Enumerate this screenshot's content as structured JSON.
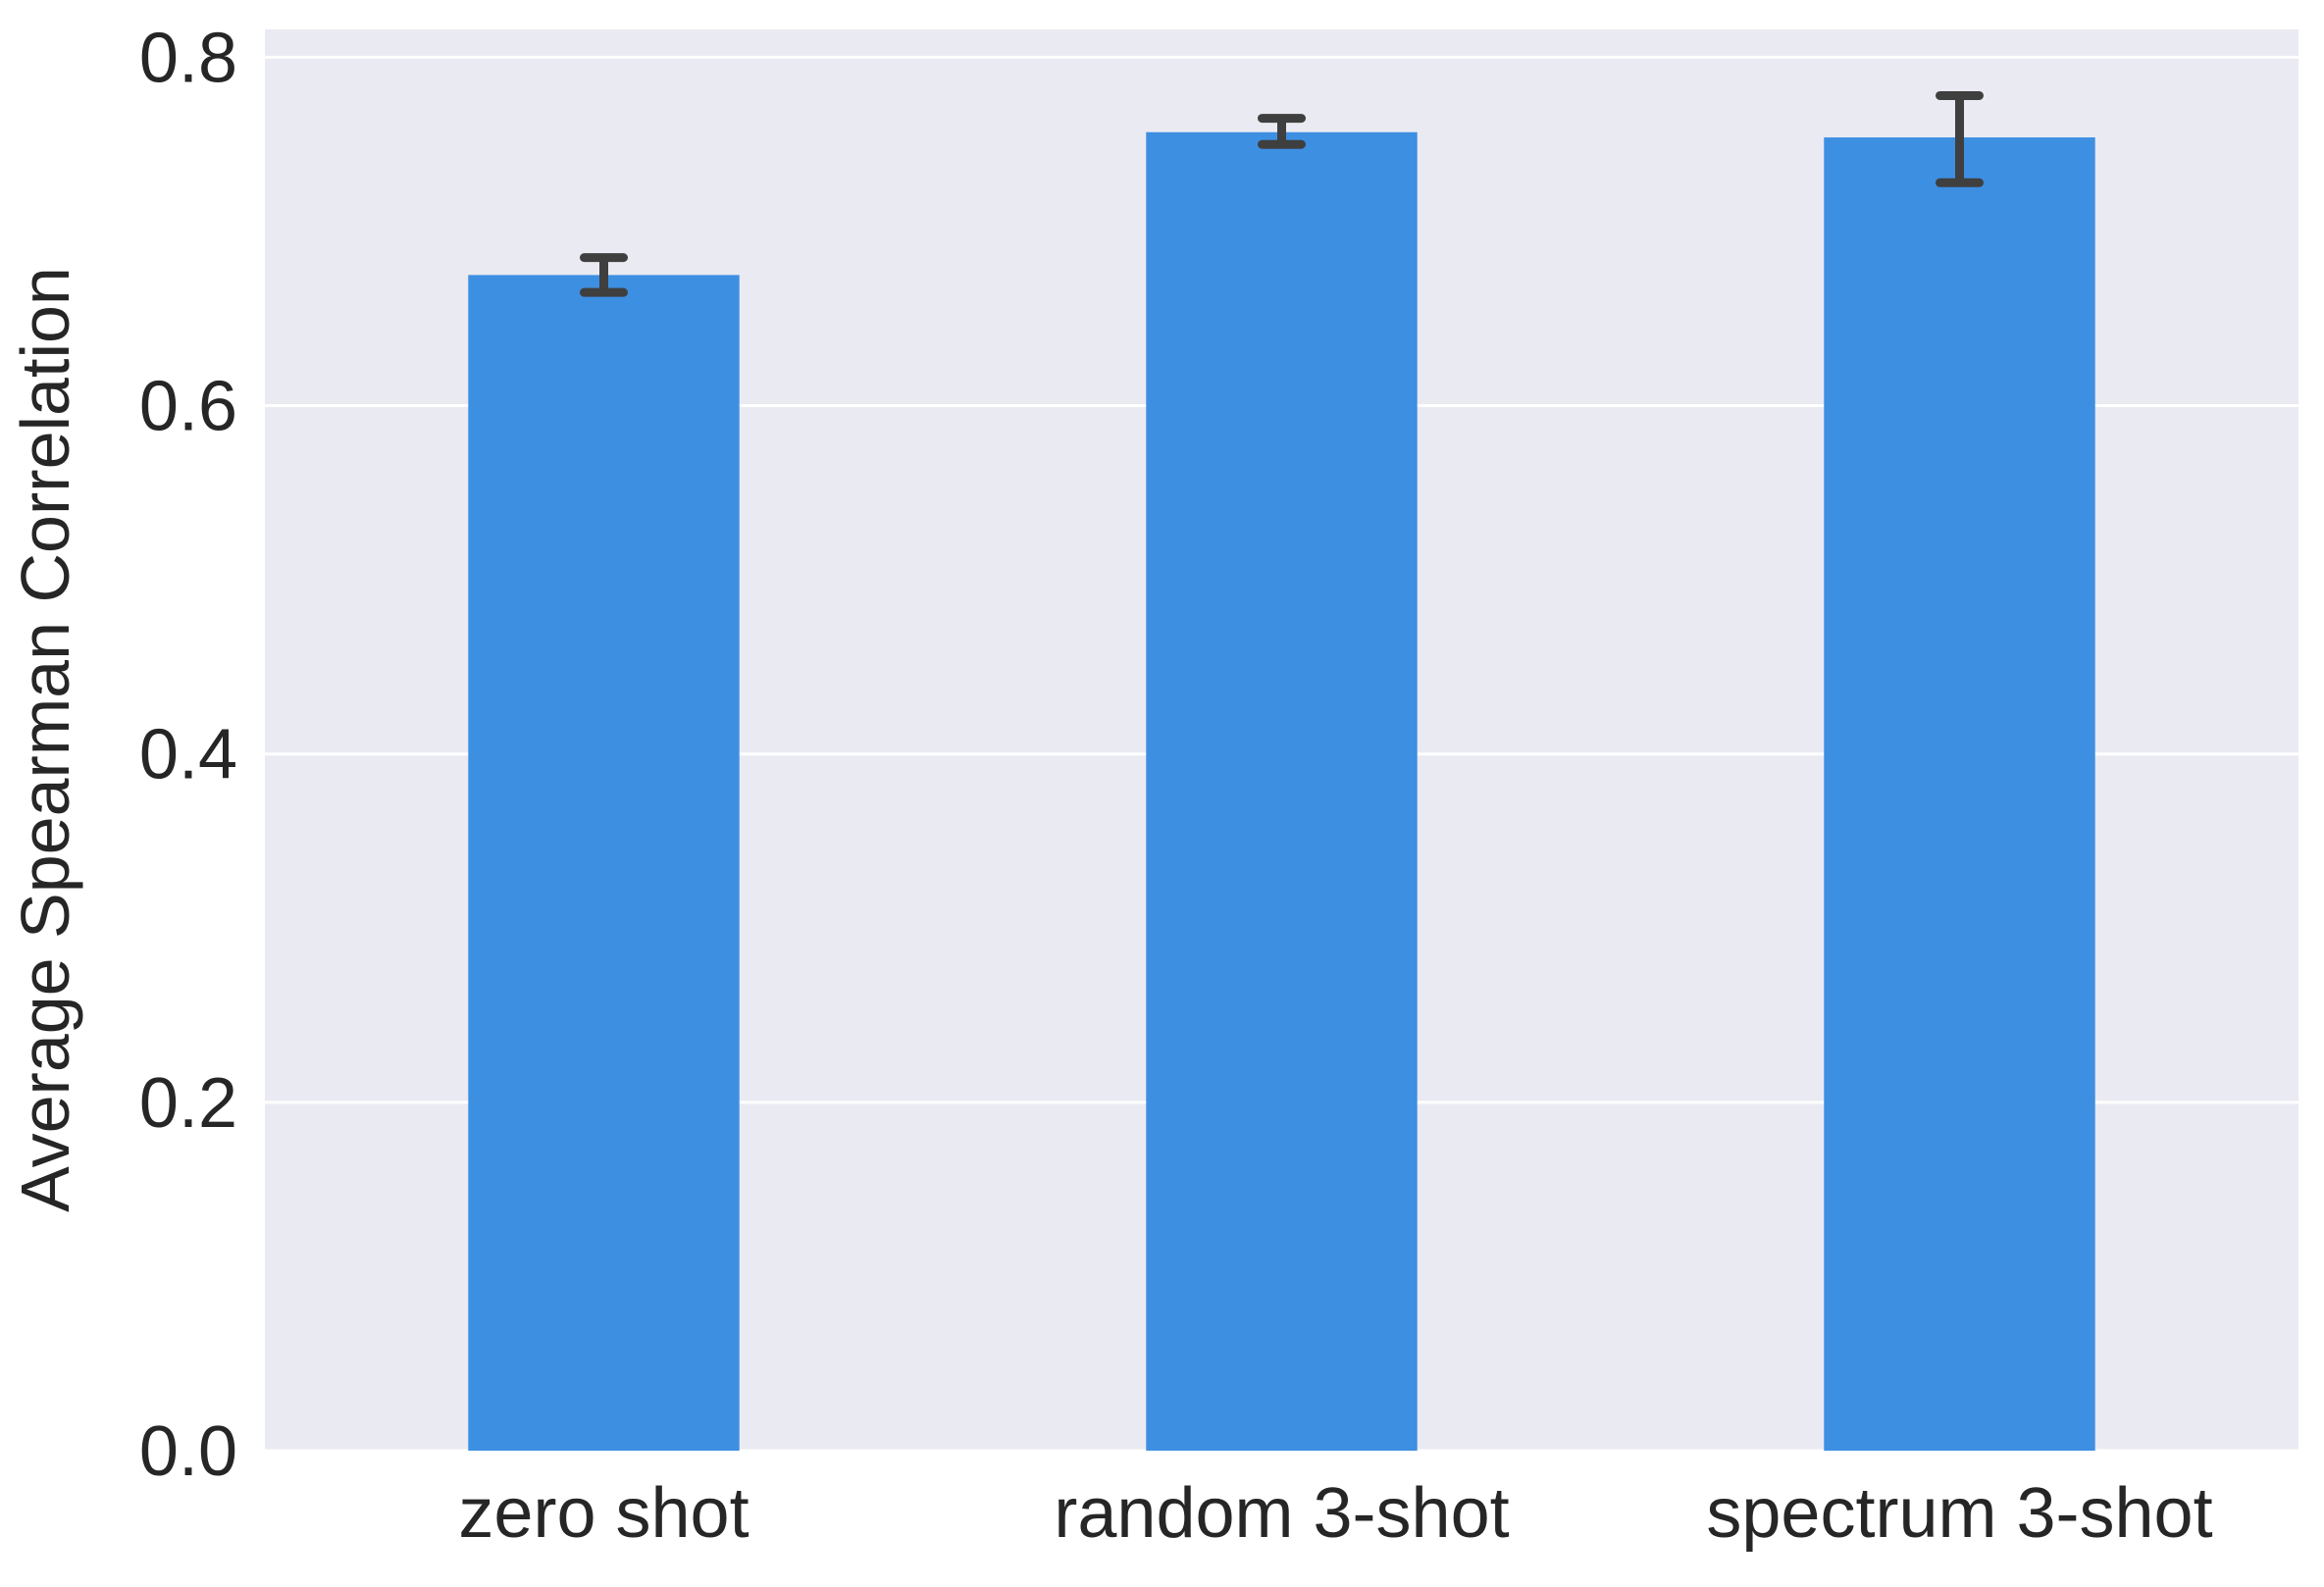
{
  "chart_data": {
    "type": "bar",
    "title": "",
    "xlabel": "",
    "ylabel": "Average Spearman Correlation",
    "categories": [
      "zero shot",
      "random 3-shot",
      "spectrum 3-shot"
    ],
    "values": [
      0.675,
      0.757,
      0.754
    ],
    "error": {
      "lower": [
        0.665,
        0.75,
        0.728
      ],
      "upper": [
        0.685,
        0.765,
        0.778
      ]
    },
    "ylim": [
      0,
      0.816
    ],
    "yticks": [
      0.0,
      0.2,
      0.4,
      0.6,
      0.8
    ],
    "ytick_labels": [
      "0.0",
      "0.2",
      "0.4",
      "0.6",
      "0.8"
    ],
    "grid": true,
    "legend": "none",
    "colors": {
      "bar": "#3d8fe2",
      "errorbar": "#3f3f3f",
      "plot_background": "#eaeaf2",
      "grid": "#ffffff",
      "text": "#262626"
    }
  }
}
